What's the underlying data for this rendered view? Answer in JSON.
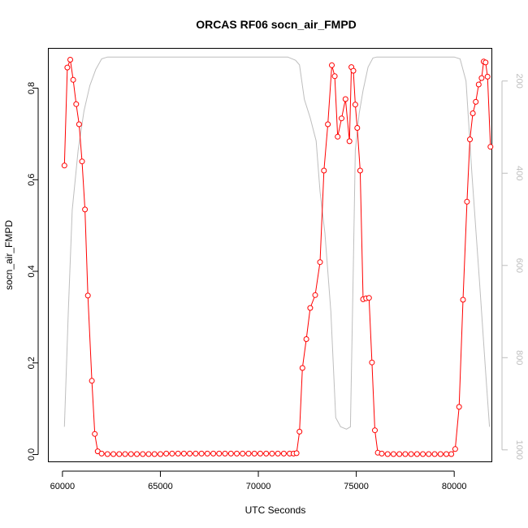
{
  "chart_data": {
    "type": "line",
    "title": "ORCAS RF06 socn_air_FMPD",
    "xlabel": "UTC Seconds",
    "ylabel": "socn_air_FMPD",
    "xlim": [
      59300,
      81900
    ],
    "ylim": [
      -0.015,
      0.886
    ],
    "xticks": [
      60000,
      65000,
      70000,
      75000,
      80000
    ],
    "yticks": [
      0.0,
      0.2,
      0.4,
      0.6,
      0.8
    ],
    "right_axis": {
      "label": "",
      "reversed": true,
      "ylim": [
        1025,
        130
      ],
      "ticks": [
        200,
        400,
        600,
        800,
        1000
      ],
      "color": "#bebebe"
    },
    "grid": false,
    "series": [
      {
        "color": "#ff0000",
        "marker": "open-circle",
        "x": [
          60100,
          60250,
          60400,
          60550,
          60700,
          60850,
          61000,
          61150,
          61300,
          61500,
          61650,
          61800,
          62000,
          62300,
          62600,
          62900,
          63200,
          63500,
          63800,
          64100,
          64400,
          64700,
          65000,
          65300,
          65600,
          65900,
          66200,
          66500,
          66800,
          67100,
          67400,
          67700,
          68000,
          68300,
          68600,
          68900,
          69200,
          69500,
          69800,
          70100,
          70400,
          70700,
          71000,
          71300,
          71600,
          71800,
          71950,
          72100,
          72250,
          72450,
          72650,
          72900,
          73150,
          73350,
          73550,
          73750,
          73900,
          74050,
          74250,
          74450,
          74650,
          74750,
          74850,
          74950,
          75050,
          75200,
          75350,
          75500,
          75650,
          75800,
          75950,
          76100,
          76300,
          76600,
          76900,
          77200,
          77500,
          77800,
          78100,
          78400,
          78700,
          79000,
          79300,
          79600,
          79850,
          80050,
          80250,
          80450,
          80650,
          80800,
          80950,
          81100,
          81250,
          81400,
          81500,
          81600,
          81700,
          81850
        ],
        "y": [
          0.631,
          0.845,
          0.862,
          0.818,
          0.765,
          0.721,
          0.64,
          0.535,
          0.347,
          0.161,
          0.045,
          0.007,
          0.002,
          0.001,
          0.001,
          0.001,
          0.001,
          0.001,
          0.001,
          0.001,
          0.001,
          0.001,
          0.001,
          0.002,
          0.002,
          0.002,
          0.002,
          0.002,
          0.002,
          0.002,
          0.002,
          0.002,
          0.002,
          0.002,
          0.002,
          0.002,
          0.002,
          0.002,
          0.002,
          0.002,
          0.002,
          0.002,
          0.002,
          0.002,
          0.002,
          0.002,
          0.003,
          0.05,
          0.189,
          0.252,
          0.32,
          0.348,
          0.42,
          0.62,
          0.721,
          0.85,
          0.826,
          0.694,
          0.734,
          0.776,
          0.684,
          0.846,
          0.838,
          0.764,
          0.713,
          0.62,
          0.339,
          0.341,
          0.342,
          0.201,
          0.053,
          0.004,
          0.002,
          0.001,
          0.001,
          0.001,
          0.001,
          0.001,
          0.001,
          0.001,
          0.001,
          0.001,
          0.001,
          0.001,
          0.001,
          0.012,
          0.104,
          0.338,
          0.552,
          0.688,
          0.745,
          0.77,
          0.808,
          0.822,
          0.858,
          0.856,
          0.825,
          0.672
        ]
      },
      {
        "color": "#bebebe",
        "axis": "right",
        "marker": "none",
        "x": [
          60100,
          60300,
          60500,
          60800,
          61100,
          61400,
          61700,
          62000,
          62300,
          63000,
          65000,
          68000,
          70000,
          71500,
          71900,
          72100,
          72350,
          72650,
          72950,
          73150,
          73400,
          73700,
          73950,
          74200,
          74500,
          74700,
          74850,
          74950,
          75150,
          75350,
          75600,
          75850,
          76050,
          76250,
          76500,
          77000,
          78500,
          80000,
          80300,
          80600,
          80900,
          81300,
          81600,
          81800
        ],
        "y": [
          950,
          700,
          480,
          350,
          265,
          210,
          175,
          152,
          148,
          148,
          148,
          148,
          148,
          148,
          155,
          165,
          240,
          280,
          330,
          440,
          530,
          700,
          930,
          950,
          955,
          950,
          600,
          350,
          270,
          220,
          170,
          150,
          148,
          148,
          148,
          148,
          148,
          148,
          152,
          200,
          400,
          640,
          830,
          950
        ]
      }
    ]
  }
}
